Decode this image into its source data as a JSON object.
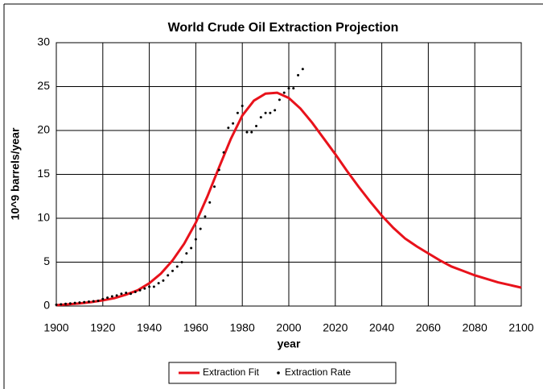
{
  "chart_data": {
    "type": "line",
    "title": "World Crude Oil Extraction Projection",
    "xlabel": "year",
    "ylabel": "10^9 barrels/year",
    "xlim": [
      1900,
      2100
    ],
    "xticks": [
      1900,
      1920,
      1940,
      1960,
      1980,
      2000,
      2020,
      2040,
      2060,
      2080,
      2100
    ],
    "ylim": [
      0,
      30
    ],
    "yticks": [
      0,
      5,
      10,
      15,
      20,
      25,
      30
    ],
    "grid": true,
    "legend": "bottom",
    "series": [
      {
        "name": "Extraction Fit",
        "type": "line",
        "color": "#e8121b",
        "x": [
          1900,
          1905,
          1910,
          1915,
          1920,
          1925,
          1930,
          1935,
          1940,
          1945,
          1950,
          1955,
          1960,
          1965,
          1970,
          1975,
          1980,
          1985,
          1990,
          1995,
          2000,
          2005,
          2010,
          2015,
          2020,
          2025,
          2030,
          2035,
          2040,
          2045,
          2050,
          2055,
          2060,
          2065,
          2070,
          2075,
          2080,
          2085,
          2090,
          2095,
          2100
        ],
        "values": [
          0.1,
          0.2,
          0.3,
          0.45,
          0.65,
          0.9,
          1.3,
          1.8,
          2.6,
          3.7,
          5.2,
          7.1,
          9.5,
          12.5,
          15.8,
          19.0,
          21.7,
          23.4,
          24.2,
          24.3,
          23.7,
          22.5,
          20.9,
          19.1,
          17.3,
          15.4,
          13.6,
          11.9,
          10.3,
          8.9,
          7.7,
          6.8,
          6.0,
          5.2,
          4.5,
          4.0,
          3.5,
          3.1,
          2.7,
          2.4,
          2.1
        ]
      },
      {
        "name": "Extraction Rate",
        "type": "scatter",
        "color": "#000000",
        "x": [
          1900,
          1902,
          1904,
          1906,
          1908,
          1910,
          1912,
          1914,
          1916,
          1918,
          1920,
          1922,
          1924,
          1926,
          1928,
          1930,
          1932,
          1934,
          1936,
          1938,
          1940,
          1942,
          1944,
          1946,
          1948,
          1950,
          1952,
          1954,
          1956,
          1958,
          1960,
          1962,
          1964,
          1966,
          1968,
          1970,
          1972,
          1974,
          1976,
          1978,
          1980,
          1982,
          1984,
          1986,
          1988,
          1990,
          1992,
          1994,
          1996,
          1998,
          2000,
          2002,
          2004,
          2006
        ],
        "values": [
          0.15,
          0.2,
          0.25,
          0.3,
          0.35,
          0.4,
          0.45,
          0.5,
          0.55,
          0.6,
          0.8,
          0.95,
          1.1,
          1.2,
          1.4,
          1.5,
          1.4,
          1.6,
          1.8,
          2.0,
          2.2,
          2.2,
          2.6,
          2.9,
          3.5,
          4.0,
          4.5,
          5.0,
          6.0,
          6.6,
          7.6,
          8.8,
          10.2,
          11.8,
          13.6,
          15.5,
          17.5,
          20.3,
          20.8,
          22.0,
          22.8,
          19.8,
          19.8,
          20.5,
          21.5,
          22.0,
          22.0,
          22.3,
          23.5,
          24.3,
          24.8,
          24.8,
          26.3,
          27.0
        ]
      }
    ]
  }
}
